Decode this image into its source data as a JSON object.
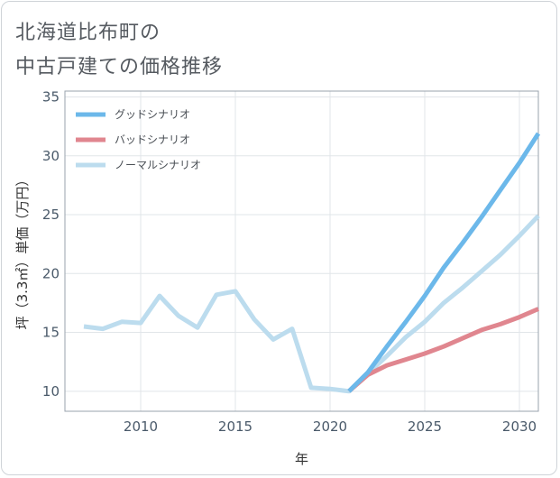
{
  "title_lines": [
    "北海道比布町の",
    "中古戸建ての価格推移"
  ],
  "chart_data": {
    "type": "line",
    "title": "北海道比布町の中古戸建ての価格推移",
    "xlabel": "年",
    "ylabel": "坪（3.3㎡）単価（万円）",
    "xlim": [
      2006,
      2031
    ],
    "ylim": [
      8.3,
      35.5
    ],
    "xticks": [
      2010,
      2015,
      2020,
      2025,
      2030
    ],
    "yticks": [
      10,
      15,
      20,
      25,
      30,
      35
    ],
    "grid": true,
    "legend_position": "top-left",
    "series": [
      {
        "name": "グッドシナリオ",
        "color": "#6cb8ea",
        "x": [
          2021,
          2022,
          2023,
          2024,
          2025,
          2026,
          2027,
          2028,
          2029,
          2030,
          2031
        ],
        "values": [
          10.0,
          11.6,
          13.8,
          15.9,
          18.1,
          20.5,
          22.6,
          24.8,
          27.1,
          29.4,
          31.9
        ]
      },
      {
        "name": "バッドシナリオ",
        "color": "#e0868f",
        "x": [
          2021,
          2022,
          2023,
          2024,
          2025,
          2026,
          2027,
          2028,
          2029,
          2030,
          2031
        ],
        "values": [
          10.0,
          11.4,
          12.2,
          12.7,
          13.2,
          13.8,
          14.5,
          15.2,
          15.7,
          16.3,
          17.0
        ]
      },
      {
        "name": "ノーマルシナリオ",
        "color": "#bcdcee",
        "x": [
          2007,
          2008,
          2009,
          2010,
          2011,
          2012,
          2013,
          2014,
          2015,
          2016,
          2017,
          2018,
          2019,
          2020,
          2021,
          2022,
          2023,
          2024,
          2025,
          2026,
          2027,
          2028,
          2029,
          2030,
          2031
        ],
        "values": [
          15.5,
          15.3,
          15.9,
          15.8,
          18.1,
          16.4,
          15.4,
          18.2,
          18.5,
          16.1,
          14.4,
          15.3,
          10.3,
          10.2,
          10.0,
          11.5,
          13.0,
          14.6,
          15.9,
          17.5,
          18.8,
          20.2,
          21.6,
          23.2,
          24.9
        ]
      }
    ]
  }
}
